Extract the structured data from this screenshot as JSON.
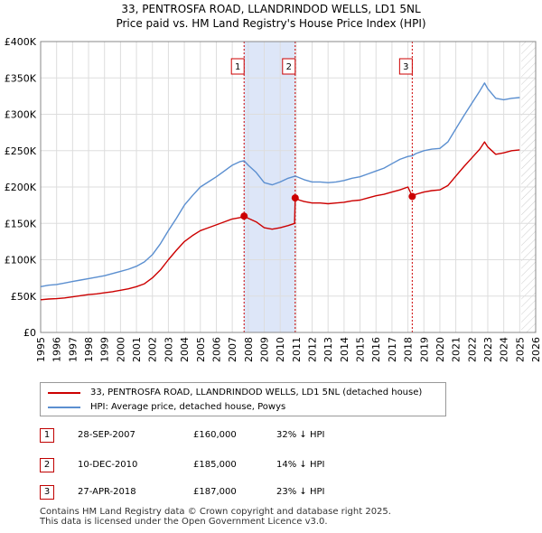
{
  "title_line1": "33, PENTROSFA ROAD, LLANDRINDOD WELLS, LD1 5NL",
  "title_line2": "Price paid vs. HM Land Registry's House Price Index (HPI)",
  "chart_data": {
    "type": "line",
    "xlim": [
      1995,
      2026
    ],
    "ylim": [
      0,
      400000
    ],
    "x_ticks": [
      1995,
      1996,
      1997,
      1998,
      1999,
      2000,
      2001,
      2002,
      2003,
      2004,
      2005,
      2006,
      2007,
      2008,
      2009,
      2010,
      2011,
      2012,
      2013,
      2014,
      2015,
      2016,
      2017,
      2018,
      2019,
      2020,
      2021,
      2022,
      2023,
      2024,
      2025,
      2026
    ],
    "y_ticks": [
      {
        "value": 0,
        "label": "£0"
      },
      {
        "value": 50000,
        "label": "£50K"
      },
      {
        "value": 100000,
        "label": "£100K"
      },
      {
        "value": 150000,
        "label": "£150K"
      },
      {
        "value": 200000,
        "label": "£200K"
      },
      {
        "value": 250000,
        "label": "£250K"
      },
      {
        "value": 300000,
        "label": "£300K"
      },
      {
        "value": 350000,
        "label": "£350K"
      },
      {
        "value": 400000,
        "label": "£400K"
      }
    ],
    "grid": true,
    "data_end": 2025.1,
    "shaded_periods": [
      [
        2007.74,
        2010.94
      ]
    ],
    "series": [
      {
        "name": "33, PENTROSFA ROAD, LLANDRINDOD WELLS, LD1 5NL (detached house)",
        "color": "#cc0000",
        "points": [
          [
            1995.0,
            45000
          ],
          [
            1995.5,
            46000
          ],
          [
            1996.0,
            46500
          ],
          [
            1996.5,
            47500
          ],
          [
            1997.0,
            49000
          ],
          [
            1997.5,
            50500
          ],
          [
            1998.0,
            52000
          ],
          [
            1998.5,
            53000
          ],
          [
            1999.0,
            54500
          ],
          [
            1999.5,
            56000
          ],
          [
            2000.0,
            58000
          ],
          [
            2000.5,
            60000
          ],
          [
            2001.0,
            63000
          ],
          [
            2001.5,
            67000
          ],
          [
            2002.0,
            75000
          ],
          [
            2002.5,
            86000
          ],
          [
            2003.0,
            100000
          ],
          [
            2003.5,
            113000
          ],
          [
            2004.0,
            125000
          ],
          [
            2004.5,
            133000
          ],
          [
            2005.0,
            140000
          ],
          [
            2005.5,
            144000
          ],
          [
            2006.0,
            148000
          ],
          [
            2006.5,
            152000
          ],
          [
            2007.0,
            156000
          ],
          [
            2007.5,
            158000
          ],
          [
            2007.74,
            160000
          ],
          [
            2008.0,
            157000
          ],
          [
            2008.5,
            152000
          ],
          [
            2009.0,
            144000
          ],
          [
            2009.5,
            142000
          ],
          [
            2010.0,
            144000
          ],
          [
            2010.5,
            147000
          ],
          [
            2010.9,
            150000
          ],
          [
            2010.94,
            185000
          ],
          [
            2011.2,
            182000
          ],
          [
            2011.5,
            180000
          ],
          [
            2012.0,
            178000
          ],
          [
            2012.5,
            178000
          ],
          [
            2013.0,
            177000
          ],
          [
            2013.5,
            178000
          ],
          [
            2014.0,
            179000
          ],
          [
            2014.5,
            181000
          ],
          [
            2015.0,
            182000
          ],
          [
            2015.5,
            185000
          ],
          [
            2016.0,
            188000
          ],
          [
            2016.5,
            190000
          ],
          [
            2017.0,
            193000
          ],
          [
            2017.5,
            196000
          ],
          [
            2018.0,
            200000
          ],
          [
            2018.27,
            187000
          ],
          [
            2018.5,
            190000
          ],
          [
            2019.0,
            193000
          ],
          [
            2019.5,
            195000
          ],
          [
            2020.0,
            196000
          ],
          [
            2020.5,
            202000
          ],
          [
            2021.0,
            215000
          ],
          [
            2021.5,
            228000
          ],
          [
            2022.0,
            240000
          ],
          [
            2022.5,
            252000
          ],
          [
            2022.8,
            262000
          ],
          [
            2023.0,
            255000
          ],
          [
            2023.5,
            245000
          ],
          [
            2024.0,
            247000
          ],
          [
            2024.5,
            250000
          ],
          [
            2025.0,
            251000
          ]
        ]
      },
      {
        "name": "HPI: Average price, detached house, Powys",
        "color": "#5b8fd0",
        "points": [
          [
            1995.0,
            63000
          ],
          [
            1995.5,
            65000
          ],
          [
            1996.0,
            66000
          ],
          [
            1996.5,
            68000
          ],
          [
            1997.0,
            70000
          ],
          [
            1997.5,
            72000
          ],
          [
            1998.0,
            74000
          ],
          [
            1998.5,
            76000
          ],
          [
            1999.0,
            78000
          ],
          [
            1999.5,
            81000
          ],
          [
            2000.0,
            84000
          ],
          [
            2000.5,
            87000
          ],
          [
            2001.0,
            91000
          ],
          [
            2001.5,
            97000
          ],
          [
            2002.0,
            107000
          ],
          [
            2002.5,
            122000
          ],
          [
            2003.0,
            140000
          ],
          [
            2003.5,
            157000
          ],
          [
            2004.0,
            175000
          ],
          [
            2004.5,
            188000
          ],
          [
            2005.0,
            200000
          ],
          [
            2005.5,
            207000
          ],
          [
            2006.0,
            214000
          ],
          [
            2006.5,
            222000
          ],
          [
            2007.0,
            230000
          ],
          [
            2007.5,
            235000
          ],
          [
            2007.74,
            236000
          ],
          [
            2008.0,
            230000
          ],
          [
            2008.5,
            220000
          ],
          [
            2009.0,
            206000
          ],
          [
            2009.5,
            203000
          ],
          [
            2010.0,
            207000
          ],
          [
            2010.5,
            212000
          ],
          [
            2010.94,
            215000
          ],
          [
            2011.5,
            210000
          ],
          [
            2012.0,
            207000
          ],
          [
            2012.5,
            207000
          ],
          [
            2013.0,
            206000
          ],
          [
            2013.5,
            207000
          ],
          [
            2014.0,
            209000
          ],
          [
            2014.5,
            212000
          ],
          [
            2015.0,
            214000
          ],
          [
            2015.5,
            218000
          ],
          [
            2016.0,
            222000
          ],
          [
            2016.5,
            226000
          ],
          [
            2017.0,
            232000
          ],
          [
            2017.5,
            238000
          ],
          [
            2018.0,
            242000
          ],
          [
            2018.27,
            243000
          ],
          [
            2018.5,
            246000
          ],
          [
            2019.0,
            250000
          ],
          [
            2019.5,
            252000
          ],
          [
            2020.0,
            253000
          ],
          [
            2020.5,
            262000
          ],
          [
            2021.0,
            280000
          ],
          [
            2021.5,
            298000
          ],
          [
            2022.0,
            315000
          ],
          [
            2022.5,
            332000
          ],
          [
            2022.8,
            343000
          ],
          [
            2023.0,
            335000
          ],
          [
            2023.5,
            322000
          ],
          [
            2024.0,
            320000
          ],
          [
            2024.5,
            322000
          ],
          [
            2025.0,
            323000
          ]
        ]
      }
    ],
    "sales": [
      {
        "n": "1",
        "x": 2007.74,
        "y": 160000
      },
      {
        "n": "2",
        "x": 2010.94,
        "y": 185000
      },
      {
        "n": "3",
        "x": 2018.27,
        "y": 187000
      }
    ]
  },
  "legend": {
    "entries": [
      {
        "label": "33, PENTROSFA ROAD, LLANDRINDOD WELLS, LD1 5NL (detached house)",
        "color": "#cc0000"
      },
      {
        "label": "HPI: Average price, detached house, Powys",
        "color": "#5b8fd0"
      }
    ]
  },
  "transactions": [
    {
      "n": "1",
      "date": "28-SEP-2007",
      "price": "£160,000",
      "hpi": "32% ↓ HPI"
    },
    {
      "n": "2",
      "date": "10-DEC-2010",
      "price": "£185,000",
      "hpi": "14% ↓ HPI"
    },
    {
      "n": "3",
      "date": "27-APR-2018",
      "price": "£187,000",
      "hpi": "23% ↓ HPI"
    }
  ],
  "footer": {
    "line1": "Contains HM Land Registry data © Crown copyright and database right 2025.",
    "line2": "This data is licensed under the Open Government Licence v3.0."
  }
}
